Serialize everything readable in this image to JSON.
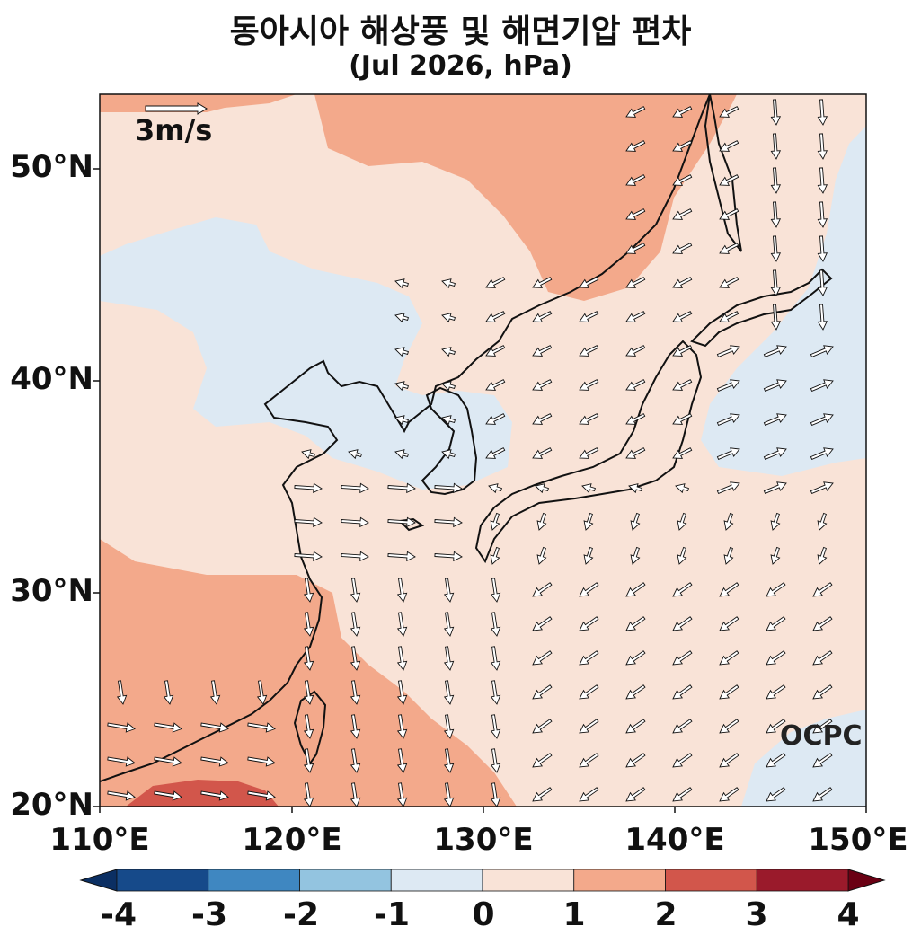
{
  "title_line1": "동아시아 해상풍 및 해면기압 편차",
  "title_line2": "(Jul 2026, hPa)",
  "reference_vector_label": "3m/s",
  "watermark": "OCPC",
  "lat_labels": [
    "50°N",
    "40°N",
    "30°N",
    "20°N"
  ],
  "lon_labels": [
    "110°E",
    "120°E",
    "130°E",
    "140°E",
    "150°E"
  ],
  "colorbar": {
    "tick_labels": [
      "-4",
      "-3",
      "-2",
      "-1",
      "0",
      "1",
      "2",
      "3",
      "4"
    ],
    "colors": [
      "#164a8a",
      "#3f87c1",
      "#93c4e0",
      "#dde9f3",
      "#f9e3d7",
      "#f3a98b",
      "#d2564b",
      "#9a1a2b"
    ],
    "under_color": "#0b2f63",
    "over_color": "#6a0013"
  },
  "chart_data": {
    "type": "map-contour-with-vectors",
    "variable": "sea level pressure anomaly (hPa) and surface wind anomaly",
    "lon_range": [
      110,
      150
    ],
    "lat_range": [
      20,
      53.5
    ],
    "contour_levels": [
      -4,
      -3,
      -2,
      -1,
      0,
      1,
      2,
      3,
      4
    ],
    "reference_vector_ms": 3
  }
}
